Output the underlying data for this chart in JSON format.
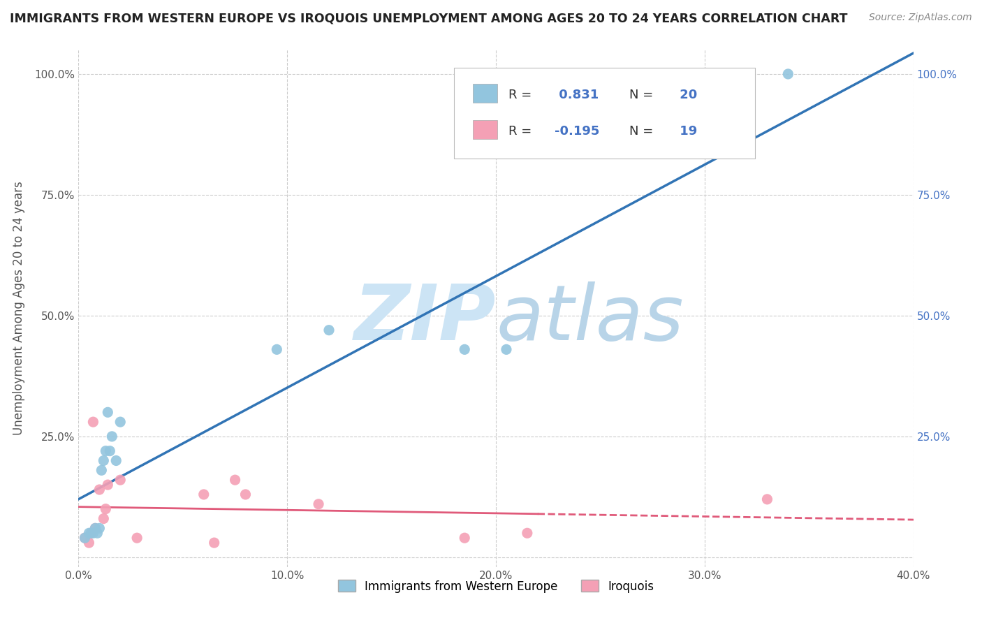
{
  "title": "IMMIGRANTS FROM WESTERN EUROPE VS IROQUOIS UNEMPLOYMENT AMONG AGES 20 TO 24 YEARS CORRELATION CHART",
  "source_text": "Source: ZipAtlas.com",
  "ylabel": "Unemployment Among Ages 20 to 24 years",
  "xlim": [
    0.0,
    0.4
  ],
  "ylim": [
    -0.02,
    1.05
  ],
  "x_ticks": [
    0.0,
    0.1,
    0.2,
    0.3,
    0.4
  ],
  "x_tick_labels": [
    "0.0%",
    "10.0%",
    "20.0%",
    "30.0%",
    "40.0%"
  ],
  "y_ticks": [
    0.0,
    0.25,
    0.5,
    0.75,
    1.0
  ],
  "y_tick_labels": [
    "",
    "25.0%",
    "50.0%",
    "75.0%",
    "100.0%"
  ],
  "blue_R": 0.831,
  "blue_N": 20,
  "pink_R": -0.195,
  "pink_N": 19,
  "blue_color": "#92c5de",
  "pink_color": "#f4a0b5",
  "blue_line_color": "#3174b5",
  "pink_line_color": "#e05a7a",
  "watermark_zip": "ZIP",
  "watermark_atlas": "atlas",
  "watermark_color_zip": "#cce4f5",
  "watermark_color_atlas": "#b8d4e8",
  "blue_scatter_x": [
    0.003,
    0.005,
    0.006,
    0.007,
    0.008,
    0.009,
    0.01,
    0.011,
    0.012,
    0.013,
    0.014,
    0.015,
    0.016,
    0.018,
    0.02,
    0.095,
    0.12,
    0.185,
    0.205,
    0.34
  ],
  "blue_scatter_y": [
    0.04,
    0.05,
    0.05,
    0.05,
    0.06,
    0.05,
    0.06,
    0.18,
    0.2,
    0.22,
    0.3,
    0.22,
    0.25,
    0.2,
    0.28,
    0.43,
    0.47,
    0.43,
    0.43,
    1.0
  ],
  "pink_scatter_x": [
    0.003,
    0.005,
    0.006,
    0.007,
    0.008,
    0.01,
    0.012,
    0.013,
    0.014,
    0.02,
    0.028,
    0.06,
    0.065,
    0.075,
    0.08,
    0.115,
    0.185,
    0.215,
    0.33
  ],
  "pink_scatter_y": [
    0.04,
    0.03,
    0.05,
    0.28,
    0.06,
    0.14,
    0.08,
    0.1,
    0.15,
    0.16,
    0.04,
    0.13,
    0.03,
    0.16,
    0.13,
    0.11,
    0.04,
    0.05,
    0.12
  ],
  "legend_label_blue": "Immigrants from Western Europe",
  "legend_label_pink": "Iroquois",
  "background_color": "#ffffff",
  "grid_color": "#cccccc"
}
